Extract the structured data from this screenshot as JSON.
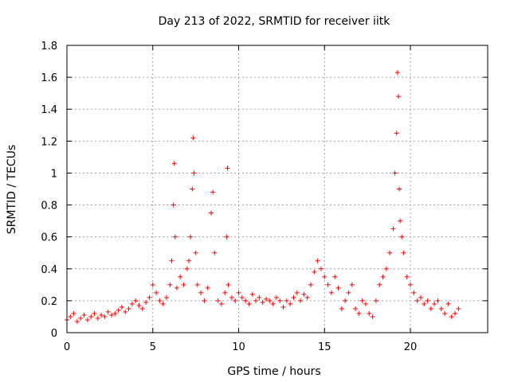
{
  "chart_data": {
    "type": "scatter",
    "title": "Day 213 of 2022, SRMTID for receiver iitk",
    "xlabel": "GPS time / hours",
    "ylabel": "SRMTID / TECUs",
    "xlim": [
      0,
      24.5
    ],
    "ylim": [
      0,
      1.8
    ],
    "xticks": [
      0,
      5,
      10,
      15,
      20
    ],
    "yticks": [
      0,
      0.2,
      0.4,
      0.6,
      0.8,
      1,
      1.2,
      1.4,
      1.6,
      1.8
    ],
    "xtick_labels": [
      "0",
      "5",
      "10",
      "15",
      "20"
    ],
    "ytick_labels": [
      "0",
      "0.2",
      "0.4",
      "0.6",
      "0.8",
      "1",
      "1.2",
      "1.4",
      "1.6",
      "1.8"
    ],
    "grid": true,
    "marker": "+",
    "color": "#ff0000",
    "series": [
      {
        "name": "SRMTID",
        "x": [
          0.0,
          0.2,
          0.4,
          0.6,
          0.8,
          1.0,
          1.2,
          1.4,
          1.6,
          1.8,
          2.0,
          2.2,
          2.4,
          2.6,
          2.8,
          3.0,
          3.2,
          3.4,
          3.6,
          3.8,
          4.0,
          4.2,
          4.4,
          4.6,
          4.8,
          5.0,
          5.2,
          5.4,
          5.6,
          5.8,
          6.0,
          6.1,
          6.2,
          6.25,
          6.3,
          6.4,
          6.6,
          6.8,
          7.0,
          7.1,
          7.2,
          7.3,
          7.35,
          7.4,
          7.5,
          7.6,
          7.8,
          8.0,
          8.2,
          8.4,
          8.5,
          8.6,
          8.8,
          9.0,
          9.2,
          9.3,
          9.35,
          9.4,
          9.6,
          9.8,
          10.0,
          10.2,
          10.4,
          10.6,
          10.8,
          11.0,
          11.2,
          11.4,
          11.6,
          11.8,
          12.0,
          12.2,
          12.4,
          12.6,
          12.8,
          13.0,
          13.2,
          13.4,
          13.6,
          13.8,
          14.0,
          14.2,
          14.4,
          14.6,
          14.8,
          15.0,
          15.2,
          15.4,
          15.6,
          15.8,
          16.0,
          16.2,
          16.4,
          16.6,
          16.8,
          17.0,
          17.2,
          17.4,
          17.6,
          17.8,
          18.0,
          18.2,
          18.4,
          18.6,
          18.8,
          19.0,
          19.1,
          19.2,
          19.25,
          19.3,
          19.35,
          19.4,
          19.5,
          19.6,
          19.8,
          20.0,
          20.2,
          20.4,
          20.6,
          20.8,
          21.0,
          21.2,
          21.4,
          21.6,
          21.8,
          22.0,
          22.2,
          22.4,
          22.6,
          22.8
        ],
        "y": [
          0.08,
          0.1,
          0.12,
          0.07,
          0.09,
          0.11,
          0.08,
          0.1,
          0.12,
          0.09,
          0.11,
          0.1,
          0.13,
          0.11,
          0.12,
          0.14,
          0.16,
          0.13,
          0.15,
          0.18,
          0.2,
          0.17,
          0.15,
          0.19,
          0.22,
          0.3,
          0.25,
          0.2,
          0.18,
          0.22,
          0.3,
          0.45,
          0.8,
          1.06,
          0.6,
          0.28,
          0.35,
          0.3,
          0.4,
          0.45,
          0.6,
          0.9,
          1.22,
          1.0,
          0.5,
          0.3,
          0.25,
          0.2,
          0.28,
          0.75,
          0.88,
          0.5,
          0.2,
          0.18,
          0.25,
          0.6,
          1.03,
          0.3,
          0.22,
          0.2,
          0.25,
          0.22,
          0.2,
          0.18,
          0.24,
          0.2,
          0.22,
          0.19,
          0.21,
          0.2,
          0.18,
          0.22,
          0.2,
          0.16,
          0.2,
          0.18,
          0.22,
          0.25,
          0.2,
          0.24,
          0.22,
          0.3,
          0.38,
          0.45,
          0.4,
          0.35,
          0.3,
          0.25,
          0.35,
          0.28,
          0.15,
          0.2,
          0.25,
          0.3,
          0.15,
          0.12,
          0.2,
          0.18,
          0.12,
          0.1,
          0.2,
          0.3,
          0.35,
          0.4,
          0.5,
          0.65,
          1.0,
          1.25,
          1.63,
          1.48,
          0.9,
          0.7,
          0.6,
          0.5,
          0.35,
          0.3,
          0.25,
          0.2,
          0.22,
          0.18,
          0.2,
          0.15,
          0.18,
          0.2,
          0.15,
          0.12,
          0.18,
          0.1,
          0.12,
          0.15
        ]
      }
    ]
  }
}
